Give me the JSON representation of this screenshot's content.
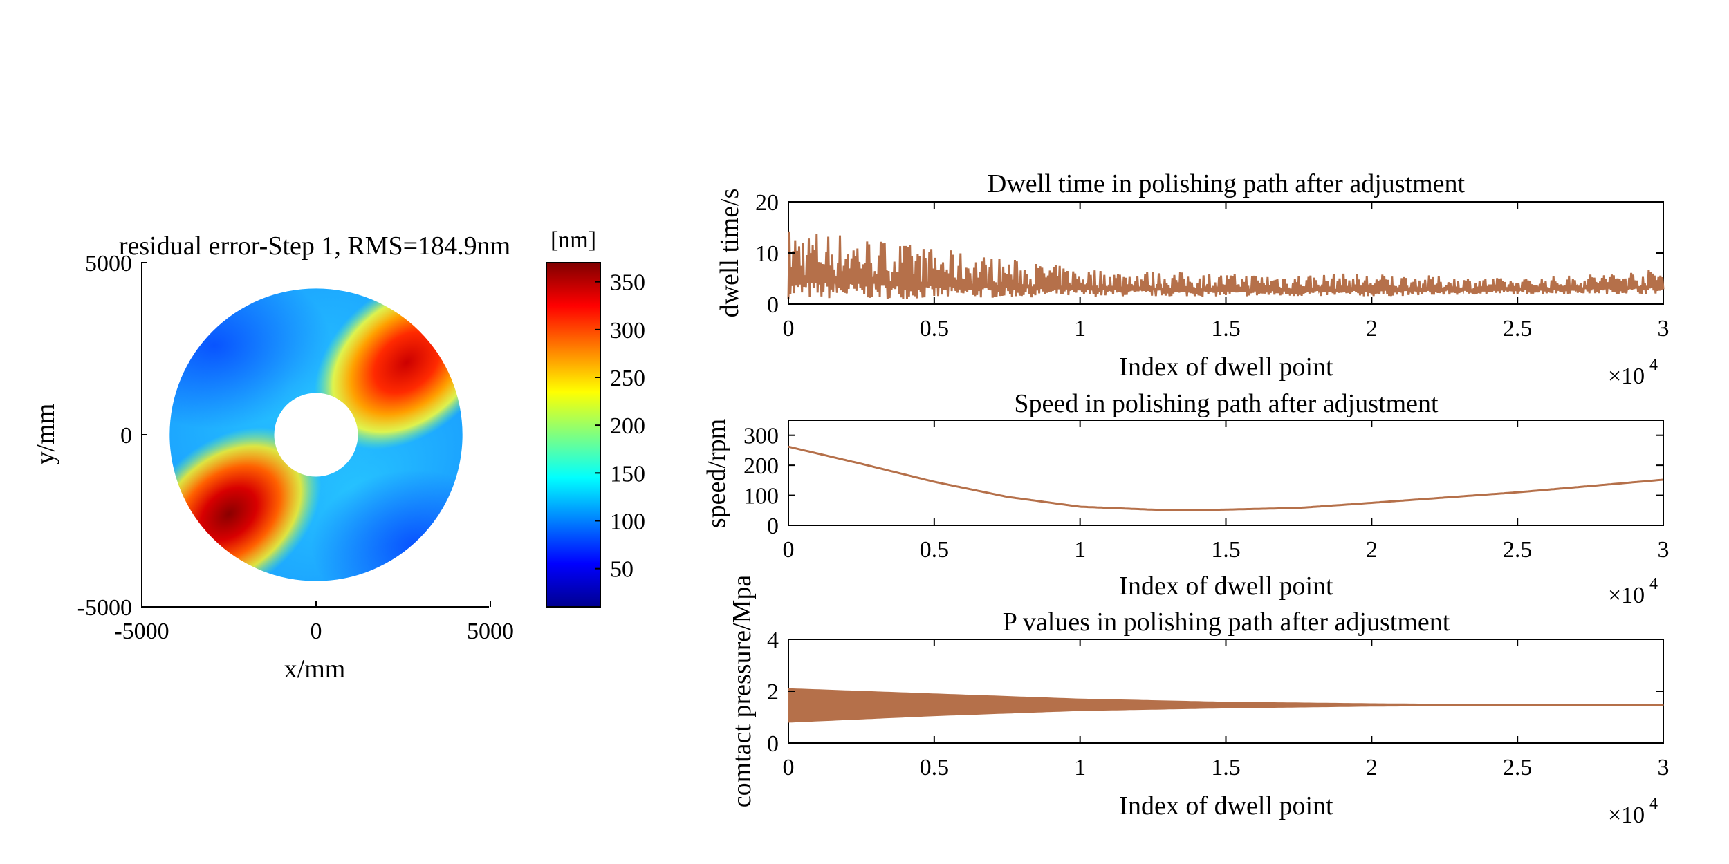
{
  "chart_data": [
    {
      "type": "heatmap",
      "title": "residual error-Step 1, RMS=184.9nm",
      "xlabel": "x/mm",
      "ylabel": "y/mm",
      "xlim": [
        -5000,
        5000
      ],
      "ylim": [
        -5000,
        5000
      ],
      "x_ticks": [
        "-5000",
        "0",
        "5000"
      ],
      "y_ticks": [
        "-5000",
        "0",
        "5000"
      ],
      "shape": "annulus",
      "outer_radius": 4200,
      "inner_radius": 1200,
      "colormap": "jet",
      "colorbar": {
        "label": "[nm]",
        "range": [
          10,
          370
        ],
        "ticks": [
          "50",
          "100",
          "150",
          "200",
          "250",
          "300",
          "350"
        ]
      },
      "hot_spots": [
        {
          "x": 2600,
          "y": 2100,
          "peak_value": 350
        },
        {
          "x": -2500,
          "y": -2300,
          "peak_value": 365
        }
      ],
      "background_level": 110
    },
    {
      "type": "line",
      "title": "Dwell time in polishing path after adjustment",
      "xlabel": "Index of dwell point",
      "ylabel": "dwell time/s",
      "x_multiplier": "×10^4",
      "xlim": [
        0,
        30000
      ],
      "ylim": [
        0,
        20
      ],
      "x_ticks": [
        "0",
        "0.5",
        "1",
        "1.5",
        "2",
        "2.5",
        "3"
      ],
      "y_ticks": [
        "0",
        "10",
        "20"
      ],
      "color": "#b5704a",
      "series": [
        {
          "x": [
            0,
            2000,
            5000,
            10000,
            15000,
            20000,
            25000,
            30000
          ],
          "y_min": [
            1,
            1,
            1,
            1.5,
            1.5,
            1.5,
            2,
            2
          ],
          "y_max": [
            15,
            14,
            11,
            7,
            6,
            6,
            5,
            7
          ]
        }
      ]
    },
    {
      "type": "line",
      "title": "Speed in polishing path after adjustment",
      "xlabel": "Index of dwell point",
      "ylabel": "speed/rpm",
      "x_multiplier": "×10^4",
      "xlim": [
        0,
        30000
      ],
      "ylim": [
        0,
        350
      ],
      "x_ticks": [
        "0",
        "0.5",
        "1",
        "1.5",
        "2",
        "2.5",
        "3"
      ],
      "y_ticks": [
        "0",
        "100",
        "200",
        "300"
      ],
      "color": "#b5704a",
      "series": [
        {
          "x": [
            0,
            2500,
            5000,
            7500,
            10000,
            12500,
            14000,
            17500,
            20000,
            25000,
            30000
          ],
          "y": [
            262,
            205,
            145,
            95,
            62,
            52,
            50,
            58,
            75,
            110,
            152
          ]
        }
      ]
    },
    {
      "type": "area",
      "title": "P values in polishing path after adjustment",
      "xlabel": "Index of dwell point",
      "ylabel": "comtact pressure/Mpa",
      "x_multiplier": "×10^4",
      "xlim": [
        0,
        30000
      ],
      "ylim": [
        0,
        4
      ],
      "x_ticks": [
        "0",
        "0.5",
        "1",
        "1.5",
        "2",
        "2.5",
        "3"
      ],
      "y_ticks": [
        "0",
        "2",
        "4"
      ],
      "color": "#b5704a",
      "series": [
        {
          "x": [
            0,
            5000,
            10000,
            15000,
            20000,
            25000,
            30000
          ],
          "y_min": [
            0.8,
            1.05,
            1.25,
            1.35,
            1.42,
            1.45,
            1.45
          ],
          "y_max": [
            2.1,
            1.9,
            1.7,
            1.58,
            1.52,
            1.48,
            1.48
          ]
        }
      ]
    }
  ]
}
